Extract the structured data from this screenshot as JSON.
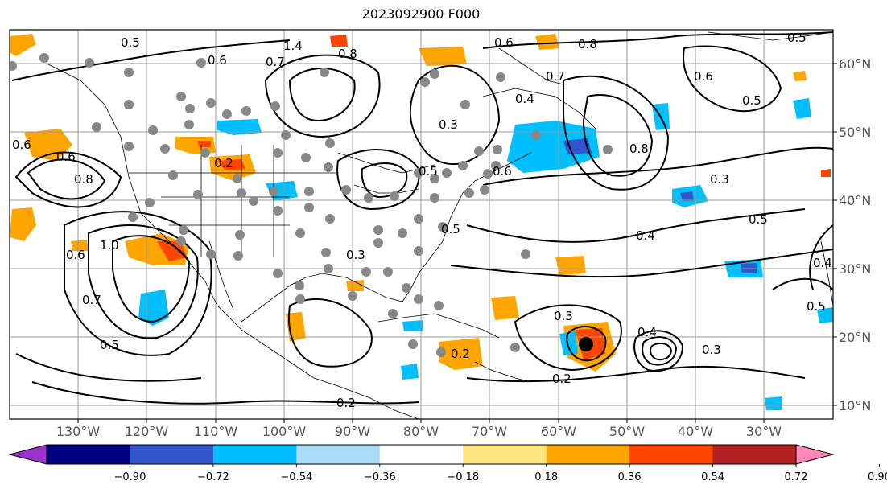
{
  "title": "2023092900 F000",
  "lon_ticks": [
    "130°W",
    "120°W",
    "110°W",
    "100°W",
    "90°W",
    "80°W",
    "70°W",
    "60°W",
    "50°W",
    "40°W",
    "30°W"
  ],
  "lat_ticks": [
    "10°N",
    "20°N",
    "30°N",
    "40°N",
    "50°N",
    "60°N"
  ],
  "colorbar": {
    "colors": [
      "#9933cc",
      "#000080",
      "#3355cc",
      "#00bfff",
      "#aadcf8",
      "#ffffff",
      "#ffe680",
      "#ffa500",
      "#ff4500",
      "#b22222",
      "#ff88bb"
    ],
    "labels": [
      "−0.90",
      "−0.72",
      "−0.54",
      "−0.36",
      "−0.18",
      "0.18",
      "0.36",
      "0.54",
      "0.72",
      "0.90"
    ]
  },
  "contour_labels": [
    "0.5",
    "0.6",
    "0.7",
    "1.4",
    "0.8",
    "0.6",
    "0.7",
    "0.8",
    "0.5",
    "0.6",
    "0.5",
    "0.4",
    "0.3",
    "0.8",
    "0.6",
    "0.5",
    "0.3",
    "0.5",
    "0.4",
    "0.2",
    "0.6",
    "0.8",
    "0.6",
    "1.0",
    "0.7",
    "0.5",
    "0.3",
    "0.5",
    "0.2",
    "0.3",
    "0.4",
    "0.3",
    "0.2",
    "0.2",
    "0.4",
    "0.5",
    "0.6"
  ]
}
